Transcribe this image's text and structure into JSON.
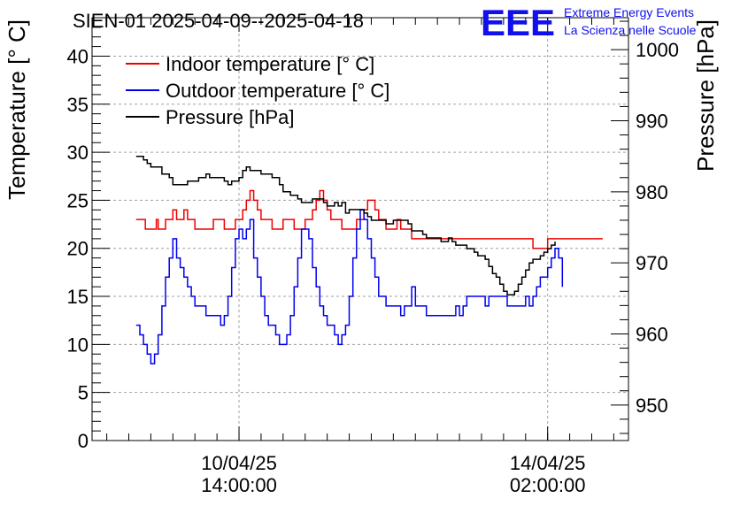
{
  "chart_data": {
    "type": "line",
    "title": "SIEN-01 2025-04-09--2025-04-18",
    "branding": {
      "logo_text": "EEE",
      "line1": "Extreme Energy Events",
      "line2": "La Scienza nelle Scuole",
      "color": "#1010ee"
    },
    "x_ticks": [
      {
        "line1": "10/04/25",
        "line2": "14:00:00",
        "hour": 38
      },
      {
        "line1": "14/04/25",
        "line2": "02:00:00",
        "hour": 122
      }
    ],
    "x_range": [
      -2,
      144
    ],
    "y_left": {
      "label": "Temperature [° C]",
      "range": [
        0,
        44
      ],
      "ticks": [
        0,
        5,
        10,
        15,
        20,
        25,
        30,
        35,
        40
      ]
    },
    "y_right": {
      "label": "Pressure [hPa]",
      "range": [
        945,
        1004.5
      ],
      "ticks": [
        950,
        960,
        970,
        980,
        990,
        1000
      ]
    },
    "series": [
      {
        "name": "Indoor temperature [° C]",
        "axis": "left",
        "color": "#ee0000",
        "points": [
          [
            10,
            23
          ],
          [
            11,
            23
          ],
          [
            12,
            23
          ],
          [
            12.5,
            22
          ],
          [
            15,
            22
          ],
          [
            15.5,
            23
          ],
          [
            16,
            22
          ],
          [
            17,
            22
          ],
          [
            18,
            23
          ],
          [
            19,
            23
          ],
          [
            20,
            24
          ],
          [
            21,
            23
          ],
          [
            22,
            23
          ],
          [
            23,
            24
          ],
          [
            24,
            23
          ],
          [
            25,
            23
          ],
          [
            26,
            22
          ],
          [
            30,
            22
          ],
          [
            31,
            23
          ],
          [
            33,
            23
          ],
          [
            34,
            22
          ],
          [
            36,
            22
          ],
          [
            37,
            23
          ],
          [
            38,
            23
          ],
          [
            39,
            24
          ],
          [
            40,
            25
          ],
          [
            41,
            26
          ],
          [
            42,
            25
          ],
          [
            43,
            24
          ],
          [
            44,
            23
          ],
          [
            46,
            23
          ],
          [
            47,
            22
          ],
          [
            49,
            22
          ],
          [
            50,
            23
          ],
          [
            52,
            23
          ],
          [
            53,
            22
          ],
          [
            55,
            22
          ],
          [
            56,
            23
          ],
          [
            57,
            23
          ],
          [
            58,
            24
          ],
          [
            59,
            25
          ],
          [
            60,
            26
          ],
          [
            61,
            25
          ],
          [
            62,
            24
          ],
          [
            63,
            23
          ],
          [
            65,
            23
          ],
          [
            66,
            22
          ],
          [
            69,
            22
          ],
          [
            70,
            23
          ],
          [
            71,
            23
          ],
          [
            72,
            24
          ],
          [
            73,
            25
          ],
          [
            74,
            25
          ],
          [
            75,
            24
          ],
          [
            76,
            23
          ],
          [
            77,
            23
          ],
          [
            78,
            22
          ],
          [
            80,
            22
          ],
          [
            81,
            23
          ],
          [
            82,
            22
          ],
          [
            84,
            22
          ],
          [
            85,
            21
          ],
          [
            88,
            21
          ],
          [
            97,
            21
          ],
          [
            117,
            21
          ],
          [
            118,
            20
          ],
          [
            121,
            20
          ],
          [
            122,
            21
          ],
          [
            137,
            21
          ]
        ]
      },
      {
        "name": "Outdoor temperature [° C]",
        "axis": "left",
        "color": "#0000ee",
        "points": [
          [
            10,
            12
          ],
          [
            11,
            11
          ],
          [
            12,
            10
          ],
          [
            13,
            9
          ],
          [
            14,
            8
          ],
          [
            15,
            9
          ],
          [
            16,
            11
          ],
          [
            17,
            14
          ],
          [
            18,
            17
          ],
          [
            19,
            19
          ],
          [
            20,
            21
          ],
          [
            21,
            19
          ],
          [
            22,
            18
          ],
          [
            23,
            17
          ],
          [
            24,
            16
          ],
          [
            25,
            15
          ],
          [
            26,
            14
          ],
          [
            28,
            14
          ],
          [
            29,
            13
          ],
          [
            32,
            13
          ],
          [
            33,
            12
          ],
          [
            34,
            13
          ],
          [
            35,
            15
          ],
          [
            36,
            18
          ],
          [
            37,
            21
          ],
          [
            38,
            22
          ],
          [
            39,
            21
          ],
          [
            40,
            22
          ],
          [
            41,
            23
          ],
          [
            42,
            19
          ],
          [
            43,
            17
          ],
          [
            44,
            15
          ],
          [
            45,
            13
          ],
          [
            46,
            12
          ],
          [
            48,
            11
          ],
          [
            49,
            10
          ],
          [
            50,
            10
          ],
          [
            51,
            11
          ],
          [
            52,
            13
          ],
          [
            53,
            16
          ],
          [
            54,
            19
          ],
          [
            55,
            22
          ],
          [
            56,
            22
          ],
          [
            57,
            21
          ],
          [
            58,
            18
          ],
          [
            59,
            16
          ],
          [
            60,
            14
          ],
          [
            61,
            13
          ],
          [
            62,
            12
          ],
          [
            63,
            12
          ],
          [
            64,
            11
          ],
          [
            65,
            10
          ],
          [
            66,
            11
          ],
          [
            67,
            12
          ],
          [
            68,
            15
          ],
          [
            69,
            19
          ],
          [
            70,
            22
          ],
          [
            71,
            24
          ],
          [
            72,
            23
          ],
          [
            73,
            21
          ],
          [
            74,
            19
          ],
          [
            75,
            17
          ],
          [
            76,
            15
          ],
          [
            77,
            15
          ],
          [
            78,
            14
          ],
          [
            81,
            14
          ],
          [
            82,
            13
          ],
          [
            83,
            14
          ],
          [
            84,
            14
          ],
          [
            85,
            16
          ],
          [
            86,
            14
          ],
          [
            88,
            14
          ],
          [
            89,
            13
          ],
          [
            96,
            13
          ],
          [
            97,
            14
          ],
          [
            98,
            13
          ],
          [
            99,
            14
          ],
          [
            100,
            15
          ],
          [
            104,
            15
          ],
          [
            105,
            14
          ],
          [
            106,
            15
          ],
          [
            110,
            15
          ],
          [
            111,
            14
          ],
          [
            115,
            14
          ],
          [
            116,
            15
          ],
          [
            117,
            14
          ],
          [
            118,
            15
          ],
          [
            119,
            16
          ],
          [
            120,
            17
          ],
          [
            121,
            17
          ],
          [
            122,
            18
          ],
          [
            123,
            19
          ],
          [
            124,
            20
          ],
          [
            125,
            19
          ],
          [
            126,
            16
          ]
        ]
      },
      {
        "name": "Pressure [hPa]",
        "axis": "right",
        "color": "#000000",
        "points": [
          [
            10,
            985
          ],
          [
            12,
            984.5
          ],
          [
            13,
            984
          ],
          [
            14,
            983.5
          ],
          [
            16,
            983.5
          ],
          [
            17,
            982.5
          ],
          [
            18,
            982.5
          ],
          [
            19,
            982
          ],
          [
            20,
            981
          ],
          [
            23,
            981
          ],
          [
            24,
            981.5
          ],
          [
            26,
            981.5
          ],
          [
            27,
            982
          ],
          [
            28,
            982
          ],
          [
            29,
            982.5
          ],
          [
            30,
            982
          ],
          [
            33,
            982
          ],
          [
            34,
            981.5
          ],
          [
            35,
            981
          ],
          [
            36,
            981.5
          ],
          [
            38,
            982
          ],
          [
            39,
            983
          ],
          [
            40,
            983.5
          ],
          [
            41,
            983
          ],
          [
            43,
            983
          ],
          [
            44,
            982.5
          ],
          [
            46,
            982.5
          ],
          [
            47,
            982
          ],
          [
            49,
            981
          ],
          [
            50,
            980
          ],
          [
            52,
            979.5
          ],
          [
            54,
            979
          ],
          [
            55,
            978.5
          ],
          [
            57,
            978.5
          ],
          [
            58,
            979
          ],
          [
            60,
            979
          ],
          [
            61,
            978.5
          ],
          [
            62,
            978
          ],
          [
            64,
            978.5
          ],
          [
            65,
            978
          ],
          [
            66,
            978.5
          ],
          [
            67,
            977
          ],
          [
            68,
            977.5
          ],
          [
            70,
            977.5
          ],
          [
            72,
            977
          ],
          [
            73,
            976.5
          ],
          [
            74,
            976
          ],
          [
            76,
            976
          ],
          [
            78,
            975.5
          ],
          [
            80,
            976
          ],
          [
            84,
            975.5
          ],
          [
            85,
            974.5
          ],
          [
            86,
            974.5
          ],
          [
            88,
            974
          ],
          [
            89,
            973.5
          ],
          [
            92,
            973.5
          ],
          [
            93,
            973
          ],
          [
            95,
            973.5
          ],
          [
            96,
            973
          ],
          [
            97,
            972.5
          ],
          [
            99,
            972.5
          ],
          [
            100,
            972
          ],
          [
            102,
            971.5
          ],
          [
            103,
            971
          ],
          [
            104,
            971
          ],
          [
            105,
            970.5
          ],
          [
            106,
            969.5
          ],
          [
            107,
            968.5
          ],
          [
            108,
            968
          ],
          [
            109,
            967
          ],
          [
            110,
            966
          ],
          [
            111,
            965.5
          ],
          [
            112,
            965.5
          ],
          [
            113,
            966
          ],
          [
            114,
            967
          ],
          [
            115,
            968
          ],
          [
            116,
            969
          ],
          [
            117,
            970
          ],
          [
            118,
            970.5
          ],
          [
            119,
            970.5
          ],
          [
            120,
            971
          ],
          [
            121,
            971.5
          ],
          [
            122,
            972
          ],
          [
            123,
            972.5
          ],
          [
            124,
            973
          ]
        ]
      }
    ]
  }
}
